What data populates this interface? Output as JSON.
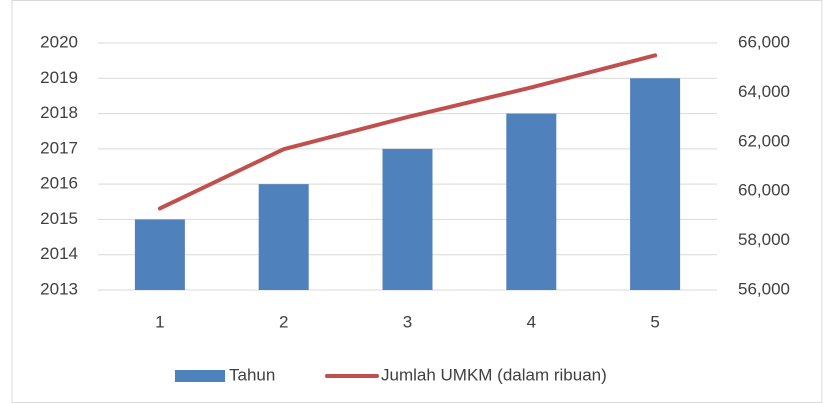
{
  "chart_data": {
    "type": "bar-line",
    "categories": [
      "1",
      "2",
      "3",
      "4",
      "5"
    ],
    "series": [
      {
        "name": "Tahun",
        "type": "bar",
        "color": "#4f81bd",
        "values": [
          2015,
          2016,
          2017,
          2018,
          2019
        ]
      },
      {
        "name": "Jumlah UMKM (dalam ribuan)",
        "type": "line",
        "axis": "y2",
        "color": "#c0504d",
        "values": [
          59300,
          61700,
          63000,
          64200,
          65500
        ]
      }
    ],
    "ylim": [
      2013,
      2020
    ],
    "yticks": [
      2013,
      2014,
      2015,
      2016,
      2017,
      2018,
      2019,
      2020
    ],
    "y2lim": [
      56000,
      66000
    ],
    "y2ticks": [
      {
        "value": 56000,
        "label": "56,000"
      },
      {
        "value": 58000,
        "label": "58,000"
      },
      {
        "value": 60000,
        "label": "60,000"
      },
      {
        "value": 62000,
        "label": "62,000"
      },
      {
        "value": 64000,
        "label": "64,000"
      },
      {
        "value": 66000,
        "label": "66,000"
      }
    ],
    "grid": true,
    "legend": "bottom"
  }
}
